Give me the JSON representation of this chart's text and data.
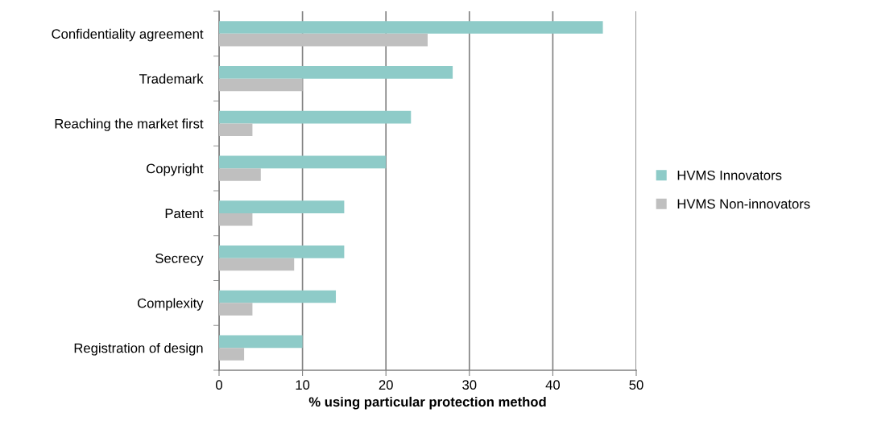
{
  "chart_data": {
    "type": "bar",
    "orientation": "horizontal",
    "xlabel": "% using particular protection method",
    "categories": [
      "Confidentiality agreement",
      "Trademark",
      "Reaching the market first",
      "Copyright",
      "Patent",
      "Secrecy",
      "Complexity",
      "Registration of design"
    ],
    "series": [
      {
        "name": "HVMS Innovators",
        "color": "#8ecbc8",
        "values": [
          46,
          28,
          23,
          20,
          15,
          15,
          14,
          10
        ]
      },
      {
        "name": "HVMS Non-innovators",
        "color": "#bfbfbf",
        "values": [
          25,
          10,
          4,
          5,
          4,
          9,
          4,
          3
        ]
      }
    ],
    "xlim": [
      0,
      50
    ],
    "xticks": [
      0,
      10,
      20,
      30,
      40,
      50
    ],
    "grid": "x",
    "legend": "right"
  }
}
